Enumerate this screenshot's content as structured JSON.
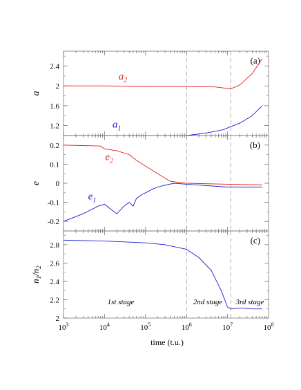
{
  "chart_data": {
    "type": "line",
    "xlabel": "time (t.u.)",
    "xscale": "log",
    "xlim": [
      1000,
      100000000
    ],
    "xticks": [
      {
        "value": 1000,
        "base": "10",
        "exp": "3"
      },
      {
        "value": 10000,
        "base": "10",
        "exp": "4"
      },
      {
        "value": 100000,
        "base": "10",
        "exp": "5"
      },
      {
        "value": 1000000,
        "base": "10",
        "exp": "6"
      },
      {
        "value": 10000000,
        "base": "10",
        "exp": "7"
      },
      {
        "value": 100000000,
        "base": "10",
        "exp": "8"
      }
    ],
    "vlines": [
      1000000,
      12000000
    ],
    "stage_labels": [
      {
        "text": "1st stage",
        "x": 25000
      },
      {
        "text": "2nd stage",
        "x": 3300000
      },
      {
        "text": "3rd stage",
        "x": 35000000
      }
    ],
    "panels": [
      {
        "id": "a",
        "tag": "(a)",
        "ylabel": "a",
        "ylim": [
          1.0,
          2.7
        ],
        "yticks": [
          1.2,
          1.6,
          2.0,
          2.4
        ],
        "ytick_labels": [
          "1.2",
          "1.6",
          "2",
          "2.4"
        ],
        "annotations": [
          {
            "base": "a",
            "sub": "2",
            "color": "#e8191c",
            "x": 28000,
            "y": 2.13
          },
          {
            "base": "a",
            "sub": "1",
            "color": "#1a1ad6",
            "x": 20000,
            "y": 1.16
          }
        ],
        "series": [
          {
            "color": "#e8191c",
            "x": [
              1000,
              10000,
              100000,
              1000000,
              5000000,
              12000000,
              20000000,
              40000000,
              70000000
            ],
            "y": [
              2.0,
              2.0,
              1.99,
              1.985,
              1.98,
              1.94,
              2.02,
              2.25,
              2.55
            ]
          },
          {
            "color": "#1a1ad6",
            "x": [
              1000,
              20000,
              1000000,
              3000000,
              8000000,
              12000000,
              20000000,
              40000000,
              70000000
            ],
            "y": [
              1.0,
              1.0,
              1.0,
              1.05,
              1.12,
              1.18,
              1.25,
              1.4,
              1.6
            ]
          }
        ]
      },
      {
        "id": "b",
        "tag": "(b)",
        "ylabel": "e",
        "ylim": [
          -0.25,
          0.25
        ],
        "yticks": [
          -0.2,
          -0.1,
          0,
          0.1,
          0.2
        ],
        "ytick_labels": [
          "-0.2",
          "-0.1",
          "0",
          "0.1",
          "0.2"
        ],
        "annotations": [
          {
            "base": "e",
            "sub": "2",
            "color": "#e8191c",
            "x": 13000,
            "y": 0.122
          },
          {
            "base": "e",
            "sub": "1",
            "color": "#1a1ad6",
            "x": 5000,
            "y": -0.085
          }
        ],
        "series": [
          {
            "color": "#e8191c",
            "x": [
              1000,
              8000,
              10000,
              20000,
              40000,
              60000,
              100000,
              200000,
              400000,
              1000000,
              10000000,
              70000000
            ],
            "y": [
              0.2,
              0.195,
              0.18,
              0.17,
              0.15,
              0.12,
              0.09,
              0.05,
              0.01,
              0.0,
              -0.005,
              -0.008
            ]
          },
          {
            "color": "#1a1ad6",
            "x": [
              1000,
              3000,
              7000,
              10000,
              15000,
              20000,
              30000,
              40000,
              50000,
              60000,
              80000,
              100000,
              150000,
              200000,
              300000,
              500000,
              1000000,
              10000000,
              70000000
            ],
            "y": [
              -0.2,
              -0.16,
              -0.12,
              -0.11,
              -0.14,
              -0.16,
              -0.12,
              -0.1,
              -0.12,
              -0.08,
              -0.06,
              -0.05,
              -0.03,
              -0.02,
              -0.01,
              0.0,
              -0.005,
              -0.02,
              -0.02
            ]
          }
        ]
      },
      {
        "id": "c",
        "tag": "(c)",
        "ylabel_base": "n",
        "ylabel_sub1": "1",
        "ylabel_mid": "/n",
        "ylabel_sub2": "2",
        "ylim": [
          2.0,
          2.95
        ],
        "yticks": [
          2.0,
          2.2,
          2.4,
          2.6,
          2.8
        ],
        "ytick_labels": [
          "2",
          "2.2",
          "2.4",
          "2.6",
          "2.8"
        ],
        "series": [
          {
            "color": "#1a1ad6",
            "x": [
              1000,
              10000,
              100000,
              300000,
              1000000,
              2000000,
              4000000,
              7000000,
              10000000,
              12000000,
              13000000,
              20000000,
              40000000,
              70000000
            ],
            "y": [
              2.85,
              2.84,
              2.82,
              2.8,
              2.75,
              2.66,
              2.52,
              2.3,
              2.12,
              2.1,
              2.1,
              2.11,
              2.1,
              2.1
            ]
          }
        ]
      }
    ]
  }
}
